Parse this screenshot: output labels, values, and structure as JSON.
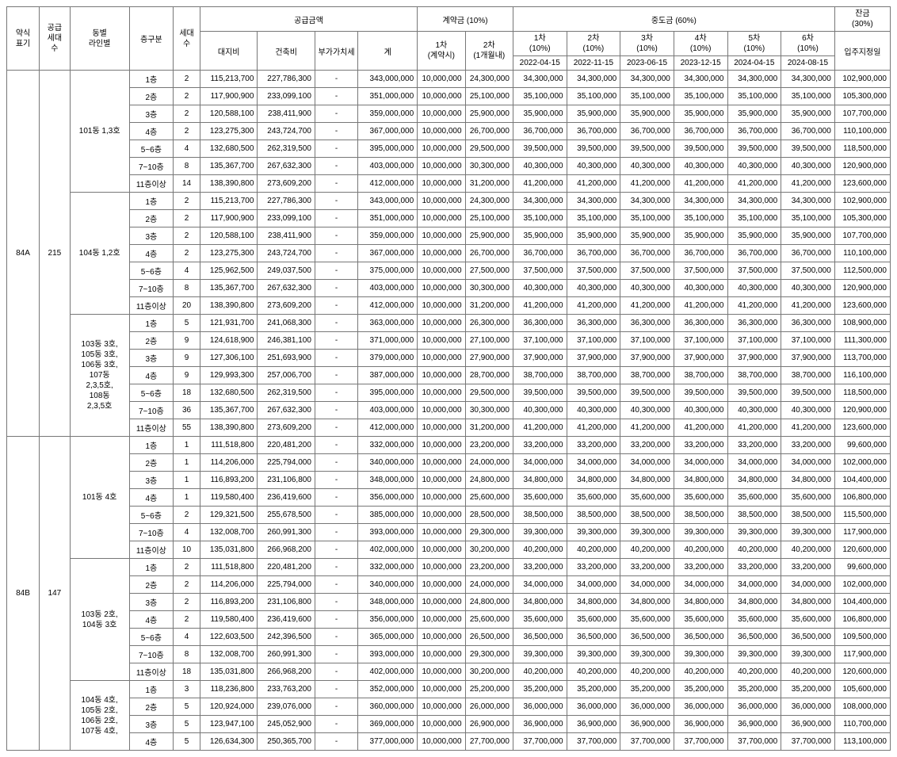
{
  "header": {
    "type_label": "약식\n표기",
    "households_label": "공급\n세대\n수",
    "line_label": "동별\n라인별",
    "floor_label": "층구분",
    "count_label": "세대\n수",
    "supply_group": "공급금액",
    "land": "대지비",
    "build": "건축비",
    "vat": "부가가치세",
    "sum": "계",
    "contract_group": "계약금 (10%)",
    "c1": "1차\n(계약시)",
    "c2": "2차\n(1개월내)",
    "mid_group": "중도금 (60%)",
    "m1": "1차\n(10%)",
    "m2": "2차\n(10%)",
    "m3": "3차\n(10%)",
    "m4": "4차\n(10%)",
    "m5": "5차\n(10%)",
    "m6": "6차\n(10%)",
    "balance_group": "잔금\n(30%)",
    "balance_sub": "입주지정일",
    "m1_date": "2022-04-15",
    "m2_date": "2022-11-15",
    "m3_date": "2023-06-15",
    "m4_date": "2023-12-15",
    "m5_date": "2024-04-15",
    "m6_date": "2024-08-15"
  },
  "groups": [
    {
      "type": "84A",
      "households": "215",
      "subgroups": [
        {
          "line": "101동 1,3호",
          "rows": [
            {
              "floor": "1층",
              "cnt": "2",
              "land": "115,213,700",
              "build": "227,786,300",
              "vat": "-",
              "sum": "343,000,000",
              "c1": "10,000,000",
              "c2": "24,300,000",
              "m": "34,300,000",
              "bal": "102,900,000"
            },
            {
              "floor": "2층",
              "cnt": "2",
              "land": "117,900,900",
              "build": "233,099,100",
              "vat": "-",
              "sum": "351,000,000",
              "c1": "10,000,000",
              "c2": "25,100,000",
              "m": "35,100,000",
              "bal": "105,300,000"
            },
            {
              "floor": "3층",
              "cnt": "2",
              "land": "120,588,100",
              "build": "238,411,900",
              "vat": "-",
              "sum": "359,000,000",
              "c1": "10,000,000",
              "c2": "25,900,000",
              "m": "35,900,000",
              "bal": "107,700,000"
            },
            {
              "floor": "4층",
              "cnt": "2",
              "land": "123,275,300",
              "build": "243,724,700",
              "vat": "-",
              "sum": "367,000,000",
              "c1": "10,000,000",
              "c2": "26,700,000",
              "m": "36,700,000",
              "bal": "110,100,000"
            },
            {
              "floor": "5~6층",
              "cnt": "4",
              "land": "132,680,500",
              "build": "262,319,500",
              "vat": "-",
              "sum": "395,000,000",
              "c1": "10,000,000",
              "c2": "29,500,000",
              "m": "39,500,000",
              "bal": "118,500,000"
            },
            {
              "floor": "7~10층",
              "cnt": "8",
              "land": "135,367,700",
              "build": "267,632,300",
              "vat": "-",
              "sum": "403,000,000",
              "c1": "10,000,000",
              "c2": "30,300,000",
              "m": "40,300,000",
              "bal": "120,900,000"
            },
            {
              "floor": "11층이상",
              "cnt": "14",
              "land": "138,390,800",
              "build": "273,609,200",
              "vat": "-",
              "sum": "412,000,000",
              "c1": "10,000,000",
              "c2": "31,200,000",
              "m": "41,200,000",
              "bal": "123,600,000"
            }
          ]
        },
        {
          "line": "104동 1,2호",
          "rows": [
            {
              "floor": "1층",
              "cnt": "2",
              "land": "115,213,700",
              "build": "227,786,300",
              "vat": "-",
              "sum": "343,000,000",
              "c1": "10,000,000",
              "c2": "24,300,000",
              "m": "34,300,000",
              "bal": "102,900,000"
            },
            {
              "floor": "2층",
              "cnt": "2",
              "land": "117,900,900",
              "build": "233,099,100",
              "vat": "-",
              "sum": "351,000,000",
              "c1": "10,000,000",
              "c2": "25,100,000",
              "m": "35,100,000",
              "bal": "105,300,000"
            },
            {
              "floor": "3층",
              "cnt": "2",
              "land": "120,588,100",
              "build": "238,411,900",
              "vat": "-",
              "sum": "359,000,000",
              "c1": "10,000,000",
              "c2": "25,900,000",
              "m": "35,900,000",
              "bal": "107,700,000"
            },
            {
              "floor": "4층",
              "cnt": "2",
              "land": "123,275,300",
              "build": "243,724,700",
              "vat": "-",
              "sum": "367,000,000",
              "c1": "10,000,000",
              "c2": "26,700,000",
              "m": "36,700,000",
              "bal": "110,100,000"
            },
            {
              "floor": "5~6층",
              "cnt": "4",
              "land": "125,962,500",
              "build": "249,037,500",
              "vat": "-",
              "sum": "375,000,000",
              "c1": "10,000,000",
              "c2": "27,500,000",
              "m": "37,500,000",
              "bal": "112,500,000"
            },
            {
              "floor": "7~10층",
              "cnt": "8",
              "land": "135,367,700",
              "build": "267,632,300",
              "vat": "-",
              "sum": "403,000,000",
              "c1": "10,000,000",
              "c2": "30,300,000",
              "m": "40,300,000",
              "bal": "120,900,000"
            },
            {
              "floor": "11층이상",
              "cnt": "20",
              "land": "138,390,800",
              "build": "273,609,200",
              "vat": "-",
              "sum": "412,000,000",
              "c1": "10,000,000",
              "c2": "31,200,000",
              "m": "41,200,000",
              "bal": "123,600,000"
            }
          ]
        },
        {
          "line": "103동 3호,\n105동 3호,\n106동 3호,\n107동\n2,3,5호,\n108동\n2,3,5호",
          "rows": [
            {
              "floor": "1층",
              "cnt": "5",
              "land": "121,931,700",
              "build": "241,068,300",
              "vat": "-",
              "sum": "363,000,000",
              "c1": "10,000,000",
              "c2": "26,300,000",
              "m": "36,300,000",
              "bal": "108,900,000"
            },
            {
              "floor": "2층",
              "cnt": "9",
              "land": "124,618,900",
              "build": "246,381,100",
              "vat": "-",
              "sum": "371,000,000",
              "c1": "10,000,000",
              "c2": "27,100,000",
              "m": "37,100,000",
              "bal": "111,300,000"
            },
            {
              "floor": "3층",
              "cnt": "9",
              "land": "127,306,100",
              "build": "251,693,900",
              "vat": "-",
              "sum": "379,000,000",
              "c1": "10,000,000",
              "c2": "27,900,000",
              "m": "37,900,000",
              "bal": "113,700,000"
            },
            {
              "floor": "4층",
              "cnt": "9",
              "land": "129,993,300",
              "build": "257,006,700",
              "vat": "-",
              "sum": "387,000,000",
              "c1": "10,000,000",
              "c2": "28,700,000",
              "m": "38,700,000",
              "bal": "116,100,000"
            },
            {
              "floor": "5~6층",
              "cnt": "18",
              "land": "132,680,500",
              "build": "262,319,500",
              "vat": "-",
              "sum": "395,000,000",
              "c1": "10,000,000",
              "c2": "29,500,000",
              "m": "39,500,000",
              "bal": "118,500,000"
            },
            {
              "floor": "7~10층",
              "cnt": "36",
              "land": "135,367,700",
              "build": "267,632,300",
              "vat": "-",
              "sum": "403,000,000",
              "c1": "10,000,000",
              "c2": "30,300,000",
              "m": "40,300,000",
              "bal": "120,900,000"
            },
            {
              "floor": "11층이상",
              "cnt": "55",
              "land": "138,390,800",
              "build": "273,609,200",
              "vat": "-",
              "sum": "412,000,000",
              "c1": "10,000,000",
              "c2": "31,200,000",
              "m": "41,200,000",
              "bal": "123,600,000"
            }
          ]
        }
      ]
    },
    {
      "type": "84B",
      "households": "147",
      "subgroups": [
        {
          "line": "101동 4호",
          "rows": [
            {
              "floor": "1층",
              "cnt": "1",
              "land": "111,518,800",
              "build": "220,481,200",
              "vat": "-",
              "sum": "332,000,000",
              "c1": "10,000,000",
              "c2": "23,200,000",
              "m": "33,200,000",
              "bal": "99,600,000"
            },
            {
              "floor": "2층",
              "cnt": "1",
              "land": "114,206,000",
              "build": "225,794,000",
              "vat": "-",
              "sum": "340,000,000",
              "c1": "10,000,000",
              "c2": "24,000,000",
              "m": "34,000,000",
              "bal": "102,000,000"
            },
            {
              "floor": "3층",
              "cnt": "1",
              "land": "116,893,200",
              "build": "231,106,800",
              "vat": "-",
              "sum": "348,000,000",
              "c1": "10,000,000",
              "c2": "24,800,000",
              "m": "34,800,000",
              "bal": "104,400,000"
            },
            {
              "floor": "4층",
              "cnt": "1",
              "land": "119,580,400",
              "build": "236,419,600",
              "vat": "-",
              "sum": "356,000,000",
              "c1": "10,000,000",
              "c2": "25,600,000",
              "m": "35,600,000",
              "bal": "106,800,000"
            },
            {
              "floor": "5~6층",
              "cnt": "2",
              "land": "129,321,500",
              "build": "255,678,500",
              "vat": "-",
              "sum": "385,000,000",
              "c1": "10,000,000",
              "c2": "28,500,000",
              "m": "38,500,000",
              "bal": "115,500,000"
            },
            {
              "floor": "7~10층",
              "cnt": "4",
              "land": "132,008,700",
              "build": "260,991,300",
              "vat": "-",
              "sum": "393,000,000",
              "c1": "10,000,000",
              "c2": "29,300,000",
              "m": "39,300,000",
              "bal": "117,900,000"
            },
            {
              "floor": "11층이상",
              "cnt": "10",
              "land": "135,031,800",
              "build": "266,968,200",
              "vat": "-",
              "sum": "402,000,000",
              "c1": "10,000,000",
              "c2": "30,200,000",
              "m": "40,200,000",
              "bal": "120,600,000"
            }
          ]
        },
        {
          "line": "103동 2호,\n104동 3호",
          "rows": [
            {
              "floor": "1층",
              "cnt": "2",
              "land": "111,518,800",
              "build": "220,481,200",
              "vat": "-",
              "sum": "332,000,000",
              "c1": "10,000,000",
              "c2": "23,200,000",
              "m": "33,200,000",
              "bal": "99,600,000"
            },
            {
              "floor": "2층",
              "cnt": "2",
              "land": "114,206,000",
              "build": "225,794,000",
              "vat": "-",
              "sum": "340,000,000",
              "c1": "10,000,000",
              "c2": "24,000,000",
              "m": "34,000,000",
              "bal": "102,000,000"
            },
            {
              "floor": "3층",
              "cnt": "2",
              "land": "116,893,200",
              "build": "231,106,800",
              "vat": "-",
              "sum": "348,000,000",
              "c1": "10,000,000",
              "c2": "24,800,000",
              "m": "34,800,000",
              "bal": "104,400,000"
            },
            {
              "floor": "4층",
              "cnt": "2",
              "land": "119,580,400",
              "build": "236,419,600",
              "vat": "-",
              "sum": "356,000,000",
              "c1": "10,000,000",
              "c2": "25,600,000",
              "m": "35,600,000",
              "bal": "106,800,000"
            },
            {
              "floor": "5~6층",
              "cnt": "4",
              "land": "122,603,500",
              "build": "242,396,500",
              "vat": "-",
              "sum": "365,000,000",
              "c1": "10,000,000",
              "c2": "26,500,000",
              "m": "36,500,000",
              "bal": "109,500,000"
            },
            {
              "floor": "7~10층",
              "cnt": "8",
              "land": "132,008,700",
              "build": "260,991,300",
              "vat": "-",
              "sum": "393,000,000",
              "c1": "10,000,000",
              "c2": "29,300,000",
              "m": "39,300,000",
              "bal": "117,900,000"
            },
            {
              "floor": "11층이상",
              "cnt": "18",
              "land": "135,031,800",
              "build": "266,968,200",
              "vat": "-",
              "sum": "402,000,000",
              "c1": "10,000,000",
              "c2": "30,200,000",
              "m": "40,200,000",
              "bal": "120,600,000"
            }
          ]
        },
        {
          "line": "104동 4호,\n105동 2호,\n106동 2호,\n107동 4호,",
          "rows": [
            {
              "floor": "1층",
              "cnt": "3",
              "land": "118,236,800",
              "build": "233,763,200",
              "vat": "-",
              "sum": "352,000,000",
              "c1": "10,000,000",
              "c2": "25,200,000",
              "m": "35,200,000",
              "bal": "105,600,000"
            },
            {
              "floor": "2층",
              "cnt": "5",
              "land": "120,924,000",
              "build": "239,076,000",
              "vat": "-",
              "sum": "360,000,000",
              "c1": "10,000,000",
              "c2": "26,000,000",
              "m": "36,000,000",
              "bal": "108,000,000"
            },
            {
              "floor": "3층",
              "cnt": "5",
              "land": "123,947,100",
              "build": "245,052,900",
              "vat": "-",
              "sum": "369,000,000",
              "c1": "10,000,000",
              "c2": "26,900,000",
              "m": "36,900,000",
              "bal": "110,700,000"
            },
            {
              "floor": "4층",
              "cnt": "5",
              "land": "126,634,300",
              "build": "250,365,700",
              "vat": "-",
              "sum": "377,000,000",
              "c1": "10,000,000",
              "c2": "27,700,000",
              "m": "37,700,000",
              "bal": "113,100,000"
            }
          ]
        }
      ]
    }
  ]
}
